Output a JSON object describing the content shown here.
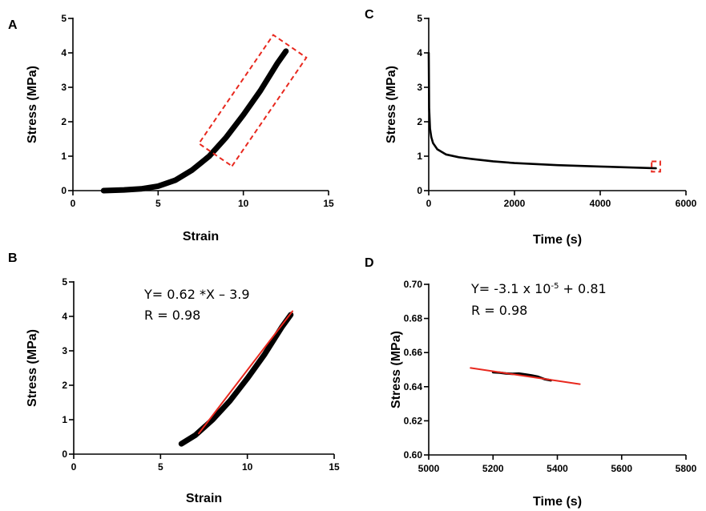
{
  "chart_data": [
    {
      "panel": "A",
      "type": "line",
      "xlabel": "Strain",
      "ylabel": "Stress (MPa)",
      "xlim": [
        0,
        15
      ],
      "ylim": [
        0,
        5
      ],
      "xticks": [
        0,
        5,
        10,
        15
      ],
      "yticks": [
        0,
        1,
        2,
        3,
        4,
        5
      ],
      "series": [
        {
          "x": [
            1.8,
            3,
            4,
            5,
            6,
            7,
            8,
            9,
            10,
            11,
            12,
            12.5
          ],
          "y": [
            0.0,
            0.02,
            0.05,
            0.13,
            0.3,
            0.6,
            1.0,
            1.55,
            2.2,
            2.9,
            3.7,
            4.05
          ]
        }
      ],
      "highlight_box": {
        "x_range": [
          8.3,
          13.2
        ],
        "y_range": [
          1.4,
          4.2
        ],
        "color": "#e8281e"
      }
    },
    {
      "panel": "C",
      "type": "line",
      "xlabel": "Time (s)",
      "ylabel": "Stress (MPa)",
      "xlim": [
        0,
        6000
      ],
      "ylim": [
        0,
        5
      ],
      "xticks": [
        0,
        2000,
        4000,
        6000
      ],
      "yticks": [
        0,
        1,
        2,
        3,
        4,
        5
      ],
      "series": [
        {
          "x": [
            0,
            10,
            30,
            60,
            100,
            200,
            400,
            700,
            1000,
            1500,
            2000,
            3000,
            4000,
            5000,
            5300
          ],
          "y": [
            4.0,
            2.4,
            1.8,
            1.55,
            1.38,
            1.2,
            1.05,
            0.97,
            0.92,
            0.85,
            0.8,
            0.74,
            0.7,
            0.66,
            0.65
          ]
        }
      ],
      "highlight_box": {
        "x_range": [
          5200,
          5400
        ],
        "y_range": [
          0.55,
          0.85
        ],
        "color": "#e8281e"
      }
    },
    {
      "panel": "B",
      "type": "line",
      "xlabel": "Strain",
      "ylabel": "Stress (MPa)",
      "xlim": [
        0,
        15
      ],
      "ylim": [
        0,
        5
      ],
      "xticks": [
        0,
        5,
        10,
        15
      ],
      "yticks": [
        0,
        1,
        2,
        3,
        4,
        5
      ],
      "annotations": [
        "Y= 0.62 *X – 3.9",
        "R = 0.98"
      ],
      "series": [
        {
          "x": [
            6.2,
            7,
            8,
            9,
            10,
            11,
            12,
            12.5
          ],
          "y": [
            0.3,
            0.55,
            1.0,
            1.55,
            2.2,
            2.9,
            3.7,
            4.05
          ],
          "color": "#000000"
        },
        {
          "x": [
            7.2,
            12.6
          ],
          "y": [
            0.6,
            4.15
          ],
          "color": "#e8281e"
        }
      ]
    },
    {
      "panel": "D",
      "type": "line",
      "xlabel": "Time (s)",
      "ylabel": "Stress (MPa)",
      "xlim": [
        5000,
        5800
      ],
      "ylim": [
        0.6,
        0.7
      ],
      "xticks": [
        5000,
        5200,
        5400,
        5600,
        5800
      ],
      "yticks": [
        "0.60",
        "0.62",
        "0.64",
        "0.66",
        "0.68",
        "0.70"
      ],
      "annotations": [
        "Y= -3.1 x 10",
        "-5",
        " + 0.81",
        "R = 0.98"
      ],
      "series": [
        {
          "x": [
            5200,
            5220,
            5240,
            5260,
            5280,
            5300,
            5320,
            5340,
            5360,
            5380
          ],
          "y": [
            0.6485,
            0.6482,
            0.6478,
            0.6475,
            0.6477,
            0.6472,
            0.6466,
            0.6458,
            0.6444,
            0.6437
          ],
          "color": "#000000"
        },
        {
          "x": [
            5130,
            5470
          ],
          "y": [
            0.651,
            0.6415
          ],
          "color": "#e8281e"
        }
      ]
    }
  ]
}
